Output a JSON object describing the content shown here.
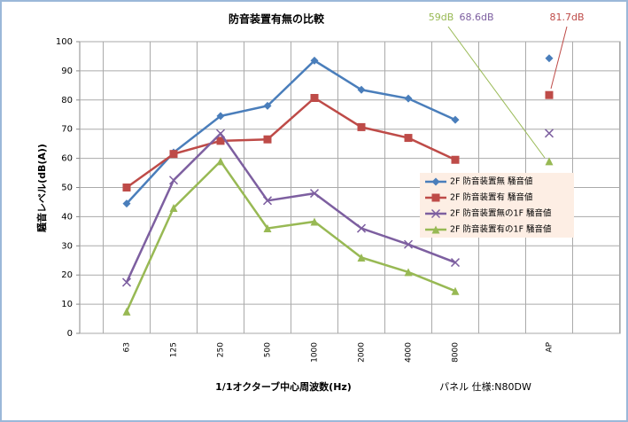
{
  "chart_data": {
    "type": "line",
    "title": "防音装置有無の比較",
    "xlabel": "1/1オクターブ中心周波数(Hz)",
    "ylabel": "騒音レベル(dB(A))",
    "note": "パネル 仕様:N80DW",
    "categories": [
      "63",
      "125",
      "250",
      "500",
      "1000",
      "2000",
      "4000",
      "8000",
      null,
      "AP",
      null
    ],
    "series": [
      {
        "name": "2F 防音装置無 騒音値",
        "color": "#4a7ebb",
        "marker": "diamond",
        "values": [
          44.5,
          62,
          74.5,
          78,
          93.5,
          83.5,
          80.5,
          73.2,
          null,
          94.3,
          null
        ]
      },
      {
        "name": "2F 防音装置有 騒音値",
        "color": "#be4b48",
        "marker": "square",
        "values": [
          50,
          61.5,
          66,
          66.5,
          80.7,
          70.7,
          67,
          59.5,
          null,
          81.7,
          null
        ],
        "value_labels": [
          null,
          null,
          null,
          null,
          null,
          null,
          null,
          null,
          null,
          "81.7dB",
          null
        ]
      },
      {
        "name": "2F 防音装置無の1F 騒音値",
        "color": "#7d5fa0",
        "marker": "x",
        "values": [
          17.5,
          52.5,
          68.5,
          45.5,
          48,
          36,
          30.5,
          24.3,
          null,
          68.6,
          null
        ],
        "value_labels": [
          null,
          null,
          null,
          null,
          null,
          null,
          null,
          null,
          null,
          "68.6dB",
          null
        ]
      },
      {
        "name": "2F 防音装置有の1F 騒音値",
        "color": "#98b954",
        "marker": "triangle",
        "values": [
          7.5,
          43,
          59,
          36,
          38.3,
          26,
          21,
          14.5,
          null,
          59,
          null
        ],
        "value_labels": [
          null,
          null,
          null,
          null,
          null,
          null,
          null,
          null,
          null,
          "59dB",
          null
        ]
      }
    ],
    "ylim": [
      0,
      100
    ],
    "yticks": [
      0,
      10,
      20,
      30,
      40,
      50,
      60,
      70,
      80,
      90,
      100
    ],
    "grid": true,
    "legend": "right"
  }
}
